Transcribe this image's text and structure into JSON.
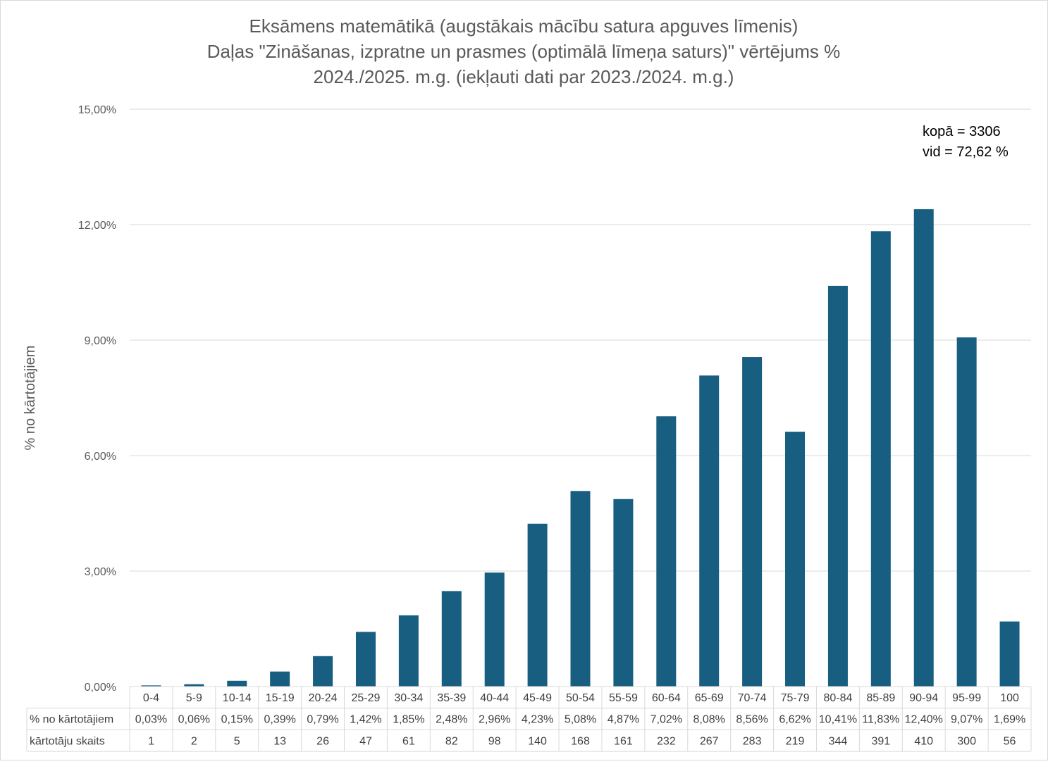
{
  "chart_data": {
    "type": "bar",
    "title_lines": [
      "Eksāmens matemātikā (augstākais mācību satura apguves līmenis)",
      "Daļas \"Zināšanas, izpratne un prasmes (optimālā līmeņa saturs)\" vērtējums %",
      "2024./2025. m.g. (iekļauti dati par 2023./2024. m.g.)"
    ],
    "ylabel": "% no kārtotājiem",
    "ylim": [
      0,
      15
    ],
    "yticks": [
      0,
      3,
      6,
      9,
      12,
      15
    ],
    "ytick_labels": [
      "0,00%",
      "3,00%",
      "6,00%",
      "9,00%",
      "12,00%",
      "15,00%"
    ],
    "grid": true,
    "legend": "none",
    "bar_color": "#175E80",
    "categories": [
      "0-4",
      "5-9",
      "10-14",
      "15-19",
      "20-24",
      "25-29",
      "30-34",
      "35-39",
      "40-44",
      "45-49",
      "50-54",
      "55-59",
      "60-64",
      "65-69",
      "70-74",
      "75-79",
      "80-84",
      "85-89",
      "90-94",
      "95-99",
      "100"
    ],
    "series": [
      {
        "values": [
          0.03,
          0.06,
          0.15,
          0.39,
          0.79,
          1.42,
          1.85,
          2.48,
          2.96,
          4.23,
          5.08,
          4.87,
          7.02,
          8.08,
          8.56,
          6.62,
          10.41,
          11.83,
          12.4,
          9.07,
          1.69
        ]
      }
    ],
    "annotations": [
      "kopā = 3306",
      "vid = 72,62 %"
    ],
    "data_table": {
      "rows": [
        {
          "label": "% no kārtotājiem",
          "cells": [
            "0,03%",
            "0,06%",
            "0,15%",
            "0,39%",
            "0,79%",
            "1,42%",
            "1,85%",
            "2,48%",
            "2,96%",
            "4,23%",
            "5,08%",
            "4,87%",
            "7,02%",
            "8,08%",
            "8,56%",
            "6,62%",
            "10,41%",
            "11,83%",
            "12,40%",
            "9,07%",
            "1,69%"
          ]
        },
        {
          "label": "kārtotāju skaits",
          "cells": [
            "1",
            "2",
            "5",
            "13",
            "26",
            "47",
            "61",
            "82",
            "98",
            "140",
            "168",
            "161",
            "232",
            "267",
            "283",
            "219",
            "344",
            "391",
            "410",
            "300",
            "56"
          ]
        }
      ]
    }
  }
}
